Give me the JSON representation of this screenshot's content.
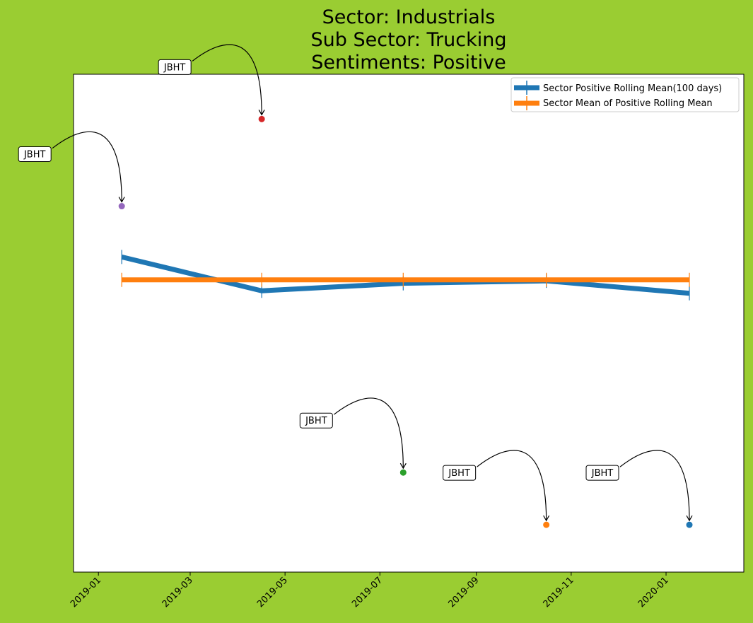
{
  "chart_data": {
    "type": "line",
    "title_lines": [
      "Sector:  Industrials",
      "Sub Sector:  Trucking",
      "Sentiments:  Positive"
    ],
    "xlabel": "",
    "ylabel": "",
    "x_ticks": [
      "2019-01",
      "2019-03",
      "2019-05",
      "2019-07",
      "2019-09",
      "2019-11",
      "2020-01"
    ],
    "legend_position": "top-right",
    "grid": false,
    "series": [
      {
        "name": "Sector Positive Rolling Mean(100 days)",
        "color": "#1f77b4",
        "x": [
          "2019-01-16",
          "2019-04-16",
          "2019-07-16",
          "2019-10-16",
          "2020-01-16"
        ],
        "y": [
          0.633,
          0.565,
          0.58,
          0.585,
          0.56
        ]
      },
      {
        "name": "Sector Mean of Positive Rolling Mean",
        "color": "#ff7f0e",
        "x": [
          "2019-01-16",
          "2019-04-16",
          "2019-07-16",
          "2019-10-16",
          "2020-01-16"
        ],
        "y": [
          0.587,
          0.587,
          0.587,
          0.587,
          0.587
        ]
      }
    ],
    "points": [
      {
        "label": "JBHT",
        "x": "2019-01-16",
        "y": 0.735,
        "color": "#9467bd"
      },
      {
        "label": "JBHT",
        "x": "2019-04-16",
        "y": 0.91,
        "color": "#d62728"
      },
      {
        "label": "JBHT",
        "x": "2019-07-16",
        "y": 0.2,
        "color": "#2ca02c"
      },
      {
        "label": "JBHT",
        "x": "2019-10-16",
        "y": 0.095,
        "color": "#ff7f0e"
      },
      {
        "label": "JBHT",
        "x": "2020-01-16",
        "y": 0.095,
        "color": "#1f77b4"
      }
    ],
    "ylim": [
      0,
      1
    ]
  }
}
